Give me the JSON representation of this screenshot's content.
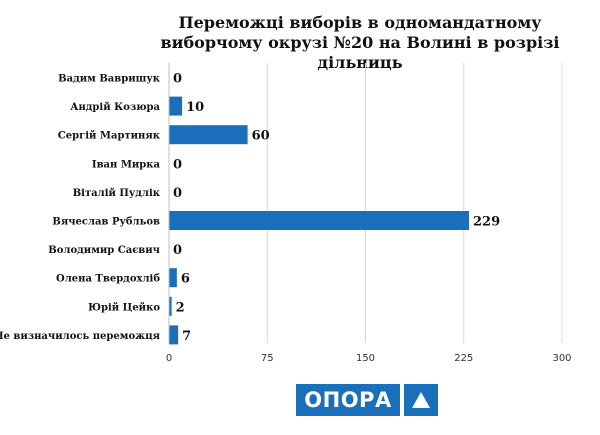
{
  "chart_data": {
    "type": "bar",
    "orientation": "horizontal",
    "title": "Переможці виборів в одномандатному виборчому окрузі №20 на Волині в розрізі дільниць",
    "categories": [
      "Вадим Вавришук",
      "Андрій Козюра",
      "Сергій Мартиняк",
      "Іван Мирка",
      "Віталій Пудлік",
      "Вячеслав Рубльов",
      "Володимир Саєвич",
      "Олена Твердохліб",
      "Юрій Цейко",
      "Не визначилось переможця"
    ],
    "values": [
      0,
      10,
      60,
      0,
      0,
      229,
      0,
      6,
      2,
      7
    ],
    "xlim": [
      0,
      300
    ],
    "xticks": [
      "0",
      "75",
      "150",
      "225",
      "300"
    ],
    "grid": true,
    "bar_color": "#1a6fba"
  },
  "logo": {
    "text": "ОПОРА"
  }
}
